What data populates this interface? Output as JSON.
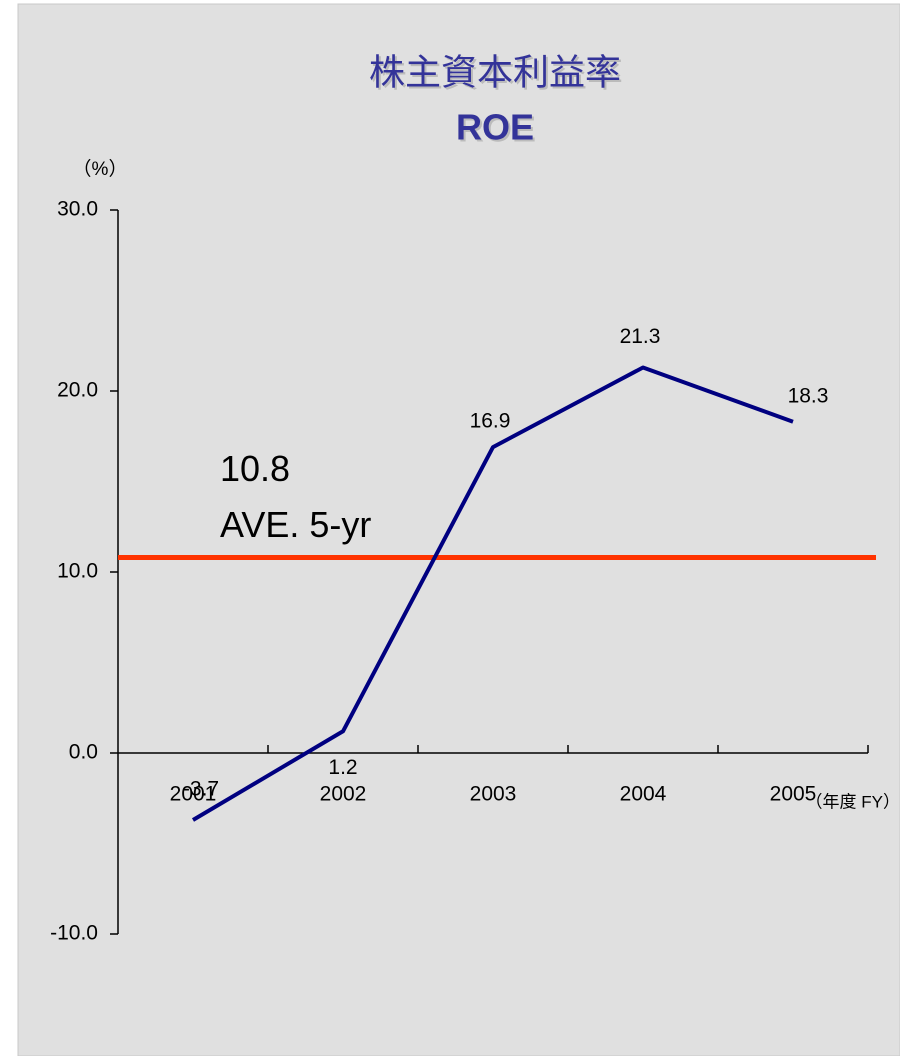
{
  "chart_data": {
    "type": "line",
    "title": "株主資本利益率",
    "subtitle": "ROE",
    "y_label": "（%）",
    "x_label": "（年度 FY）",
    "categories": [
      "2001",
      "2002",
      "2003",
      "2004",
      "2005"
    ],
    "series": [
      {
        "color": "#000080",
        "values": [
          -3.7,
          1.2,
          16.9,
          21.3,
          18.3
        ]
      }
    ],
    "average": {
      "value": 10.8,
      "label": "AVE. 5-yr",
      "color": "#ff3300"
    },
    "negative_color": "#ff0000",
    "ylim": [
      -10,
      30
    ],
    "yticks": [
      {
        "value": -10,
        "label": "-10.0"
      },
      {
        "value": 0,
        "label": "0.0"
      },
      {
        "value": 10,
        "label": "10.0"
      },
      {
        "value": 20,
        "label": "20.0"
      },
      {
        "value": 30,
        "label": "30.0"
      }
    ]
  }
}
